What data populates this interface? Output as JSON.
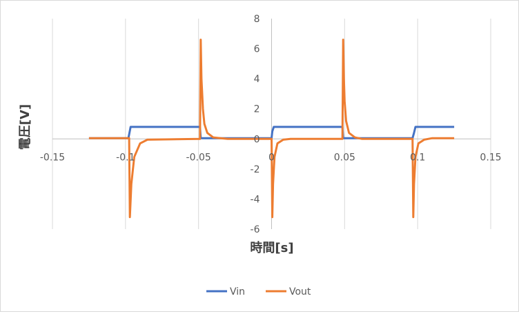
{
  "chart_data": {
    "type": "line",
    "title": "",
    "xlabel": "時間[s]",
    "ylabel": "電圧[V]",
    "xlim": [
      -0.15,
      0.15
    ],
    "ylim": [
      -6,
      8
    ],
    "x_ticks": [
      -0.15,
      -0.1,
      -0.05,
      0,
      0.05,
      0.1,
      0.15
    ],
    "x_tick_labels": [
      "-0.15",
      "-0.1",
      "-0.05",
      "0",
      "0.05",
      "0.1",
      "0.15"
    ],
    "y_ticks": [
      -6,
      -4,
      -2,
      0,
      2,
      4,
      6,
      8
    ],
    "y_tick_labels": [
      "-6",
      "-4",
      "-2",
      "0",
      "2",
      "4",
      "6",
      "8"
    ],
    "grid": {
      "vertical": true,
      "horizontal": false
    },
    "legend_position": "bottom",
    "series": [
      {
        "name": "Vin",
        "color": "#4472c4",
        "x": [
          -0.125,
          -0.098,
          -0.0975,
          -0.0965,
          -0.049,
          -0.0485,
          0.0,
          0.0005,
          0.0015,
          0.0485,
          0.049,
          0.0965,
          0.0975,
          0.0985,
          0.125
        ],
        "y": [
          0.05,
          0.05,
          0.3,
          0.8,
          0.8,
          0.05,
          0.05,
          0.5,
          0.8,
          0.8,
          0.05,
          0.05,
          0.4,
          0.8,
          0.8
        ]
      },
      {
        "name": "Vout",
        "color": "#ed7d31",
        "x": [
          -0.125,
          -0.0975,
          -0.097,
          -0.096,
          -0.094,
          -0.09,
          -0.085,
          -0.049,
          -0.0485,
          -0.048,
          -0.0475,
          -0.047,
          -0.046,
          -0.044,
          -0.04,
          -0.035,
          -0.03,
          0.0,
          0.0005,
          0.001,
          0.002,
          0.004,
          0.008,
          0.013,
          0.0485,
          0.049,
          0.0495,
          0.05,
          0.051,
          0.053,
          0.057,
          0.062,
          0.0965,
          0.097,
          0.0975,
          0.0985,
          0.1005,
          0.1045,
          0.11,
          0.125
        ],
        "y": [
          0.05,
          0.05,
          -5.2,
          -3.0,
          -1.2,
          -0.3,
          -0.05,
          0.0,
          6.6,
          4.0,
          3.0,
          2.0,
          1.0,
          0.4,
          0.1,
          0.05,
          0.0,
          0.0,
          -5.2,
          -3.0,
          -1.2,
          -0.3,
          -0.05,
          0.0,
          0.0,
          6.6,
          4.0,
          2.5,
          1.2,
          0.4,
          0.1,
          0.0,
          0.0,
          -5.2,
          -3.0,
          -1.2,
          -0.3,
          -0.05,
          0.05,
          0.05
        ]
      }
    ]
  }
}
